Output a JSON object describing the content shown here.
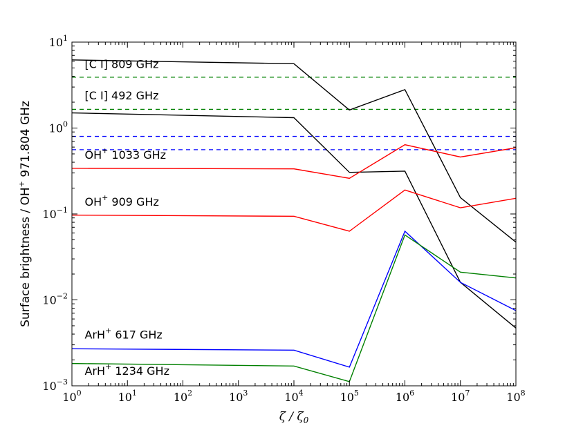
{
  "chart_data": {
    "type": "line",
    "xlabel": "ζ / ζ0",
    "xlabel_main": "ζ / ζ",
    "xlabel_sub": "0",
    "ylabel": "Surface brightness / OH+ 971.804 GHz",
    "ylabel_parts": {
      "a": "Surface brightness / OH",
      "sup": "+",
      "b": " 971.804 GHz"
    },
    "xscale": "log",
    "yscale": "log",
    "xlim": [
      1,
      100000000
    ],
    "ylim": [
      0.001,
      10
    ],
    "x_ticks": [
      {
        "value": 1,
        "base": "10",
        "exp": "0"
      },
      {
        "value": 10,
        "base": "10",
        "exp": "1"
      },
      {
        "value": 100,
        "base": "10",
        "exp": "2"
      },
      {
        "value": 1000,
        "base": "10",
        "exp": "3"
      },
      {
        "value": 10000,
        "base": "10",
        "exp": "4"
      },
      {
        "value": 100000,
        "base": "10",
        "exp": "5"
      },
      {
        "value": 1000000,
        "base": "10",
        "exp": "6"
      },
      {
        "value": 10000000,
        "base": "10",
        "exp": "7"
      },
      {
        "value": 100000000,
        "base": "10",
        "exp": "8"
      }
    ],
    "y_ticks": [
      {
        "value": 0.001,
        "base": "10",
        "exp": "−3"
      },
      {
        "value": 0.01,
        "base": "10",
        "exp": "−2"
      },
      {
        "value": 0.1,
        "base": "10",
        "exp": "−1"
      },
      {
        "value": 1,
        "base": "10",
        "exp": "0"
      },
      {
        "value": 10,
        "base": "10",
        "exp": "1"
      }
    ],
    "x": [
      1,
      10000,
      100000,
      1000000,
      10000000,
      100000000
    ],
    "series": [
      {
        "color": "#000000",
        "style": "solid",
        "values": [
          6.2,
          5.6,
          1.62,
          2.8,
          0.155,
          0.047
        ]
      },
      {
        "color": "#000000",
        "style": "solid",
        "values": [
          1.5,
          1.32,
          0.305,
          0.315,
          0.016,
          0.0047
        ]
      },
      {
        "color": "#ff0000",
        "style": "solid",
        "values": [
          0.34,
          0.335,
          0.26,
          0.64,
          0.46,
          0.59
        ]
      },
      {
        "color": "#ff0000",
        "style": "solid",
        "values": [
          0.097,
          0.094,
          0.063,
          0.19,
          0.118,
          0.152
        ]
      },
      {
        "color": "#0000ff",
        "style": "solid",
        "values": [
          0.0027,
          0.0026,
          0.00165,
          0.063,
          0.016,
          0.0075
        ]
      },
      {
        "color": "#008000",
        "style": "solid",
        "values": [
          0.00182,
          0.0017,
          0.00112,
          0.057,
          0.021,
          0.018
        ]
      }
    ],
    "hlines": [
      {
        "color": "#008000",
        "style": "dashed",
        "y": 3.9
      },
      {
        "color": "#008000",
        "style": "dashed",
        "y": 1.65
      },
      {
        "color": "#0000ff",
        "style": "dashed",
        "y": 0.8
      },
      {
        "color": "#0000ff",
        "style": "dashed",
        "y": 0.56
      }
    ],
    "annotations": [
      {
        "parts": [
          "[C I] 809 GHz"
        ],
        "x": 1.7,
        "y": 5.0
      },
      {
        "parts": [
          "[C I] 492 GHz"
        ],
        "x": 1.7,
        "y": 2.15
      },
      {
        "parts": [
          "OH",
          "+",
          " 1033 GHz"
        ],
        "x": 1.7,
        "y": 0.44
      },
      {
        "parts": [
          "OH",
          "+",
          " 909 GHz"
        ],
        "x": 1.7,
        "y": 0.125
      },
      {
        "parts": [
          "ArH",
          "+",
          " 617 GHz"
        ],
        "x": 1.7,
        "y": 0.00355
      },
      {
        "parts": [
          "ArH",
          "+",
          " 1234 GHz"
        ],
        "x": 1.7,
        "y": 0.00135
      }
    ]
  }
}
